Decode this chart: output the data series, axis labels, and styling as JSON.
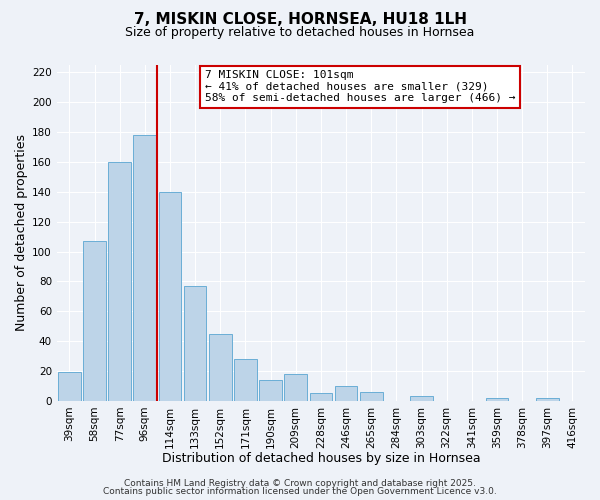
{
  "title": "7, MISKIN CLOSE, HORNSEA, HU18 1LH",
  "subtitle": "Size of property relative to detached houses in Hornsea",
  "xlabel": "Distribution of detached houses by size in Hornsea",
  "ylabel": "Number of detached properties",
  "bar_labels": [
    "39sqm",
    "58sqm",
    "77sqm",
    "96sqm",
    "114sqm",
    "133sqm",
    "152sqm",
    "171sqm",
    "190sqm",
    "209sqm",
    "228sqm",
    "246sqm",
    "265sqm",
    "284sqm",
    "303sqm",
    "322sqm",
    "341sqm",
    "359sqm",
    "378sqm",
    "397sqm",
    "416sqm"
  ],
  "bar_values": [
    19,
    107,
    160,
    178,
    140,
    77,
    45,
    28,
    14,
    18,
    5,
    10,
    6,
    0,
    3,
    0,
    0,
    2,
    0,
    2,
    0
  ],
  "bar_color": "#bdd4e8",
  "bar_edge_color": "#6aaed6",
  "vline_x": 3.5,
  "vline_color": "#cc0000",
  "ylim": [
    0,
    225
  ],
  "yticks": [
    0,
    20,
    40,
    60,
    80,
    100,
    120,
    140,
    160,
    180,
    200,
    220
  ],
  "annotation_text_line1": "7 MISKIN CLOSE: 101sqm",
  "annotation_text_line2": "← 41% of detached houses are smaller (329)",
  "annotation_text_line3": "58% of semi-detached houses are larger (466) →",
  "footnote1": "Contains HM Land Registry data © Crown copyright and database right 2025.",
  "footnote2": "Contains public sector information licensed under the Open Government Licence v3.0.",
  "bg_color": "#eef2f8",
  "grid_color": "#ffffff",
  "title_fontsize": 11,
  "subtitle_fontsize": 9,
  "axis_label_fontsize": 9,
  "tick_fontsize": 7.5,
  "annotation_fontsize": 8,
  "footnote_fontsize": 6.5
}
